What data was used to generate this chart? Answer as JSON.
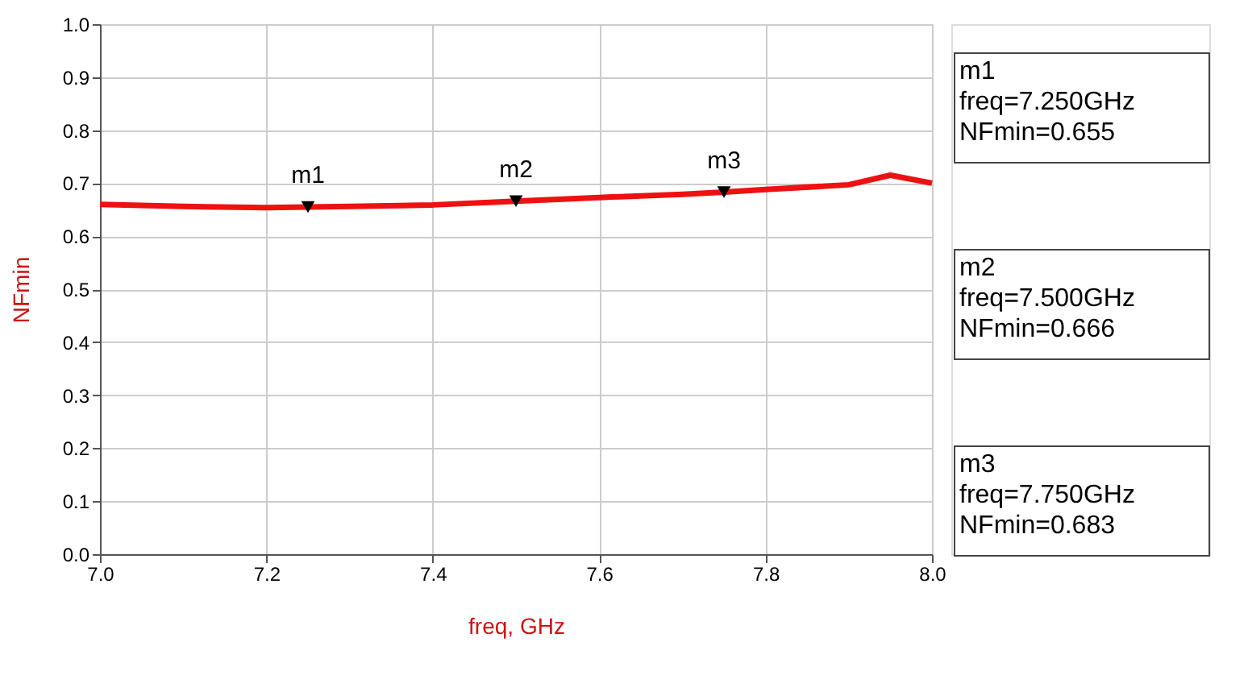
{
  "chart_data": {
    "type": "line",
    "xlabel": "freq, GHz",
    "ylabel": "NFmin",
    "x": [
      7.0,
      7.1,
      7.2,
      7.25,
      7.3,
      7.4,
      7.5,
      7.6,
      7.7,
      7.75,
      7.8,
      7.9,
      7.95,
      8.0
    ],
    "series": [
      {
        "color": "#ee1111",
        "values": [
          0.66,
          0.656,
          0.654,
          0.655,
          0.656,
          0.659,
          0.666,
          0.673,
          0.679,
          0.683,
          0.688,
          0.697,
          0.715,
          0.7
        ]
      },
      {
        "type": "scatter",
        "marker": "triangle",
        "color": "#000000",
        "x": [
          7.25,
          7.5,
          7.75
        ],
        "values": [
          0.655,
          0.666,
          0.683
        ]
      }
    ],
    "xlim": [
      7.0,
      8.0
    ],
    "xticks": [
      {
        "value": 7.0,
        "label": "7.0"
      },
      7.2,
      7.4,
      7.6,
      7.8,
      {
        "value": 8.0,
        "label": "8.0"
      }
    ],
    "ylim": [
      0.0,
      1.0
    ],
    "yticks": [
      {
        "value": 0.0,
        "label": "0.0"
      },
      0.1,
      0.2,
      0.3,
      0.4,
      0.5,
      0.6,
      0.7,
      0.8,
      0.9,
      {
        "value": 1.0,
        "label": "1.0"
      }
    ],
    "grid": true,
    "marker": "none",
    "line_style": "solid",
    "annotations": [
      {
        "text": "m1",
        "x": 7.25,
        "y": 0.655
      },
      {
        "text": "m2",
        "x": 7.5,
        "y": 0.666
      },
      {
        "text": "m3",
        "x": 7.75,
        "y": 0.683
      },
      "m1\nfreq=7.250GHz\nNFmin=0.655",
      "m2\nfreq=7.500GHz\nNFmin=0.666",
      "m3\nfreq=7.750GHz\nNFmin=0.683"
    ]
  }
}
